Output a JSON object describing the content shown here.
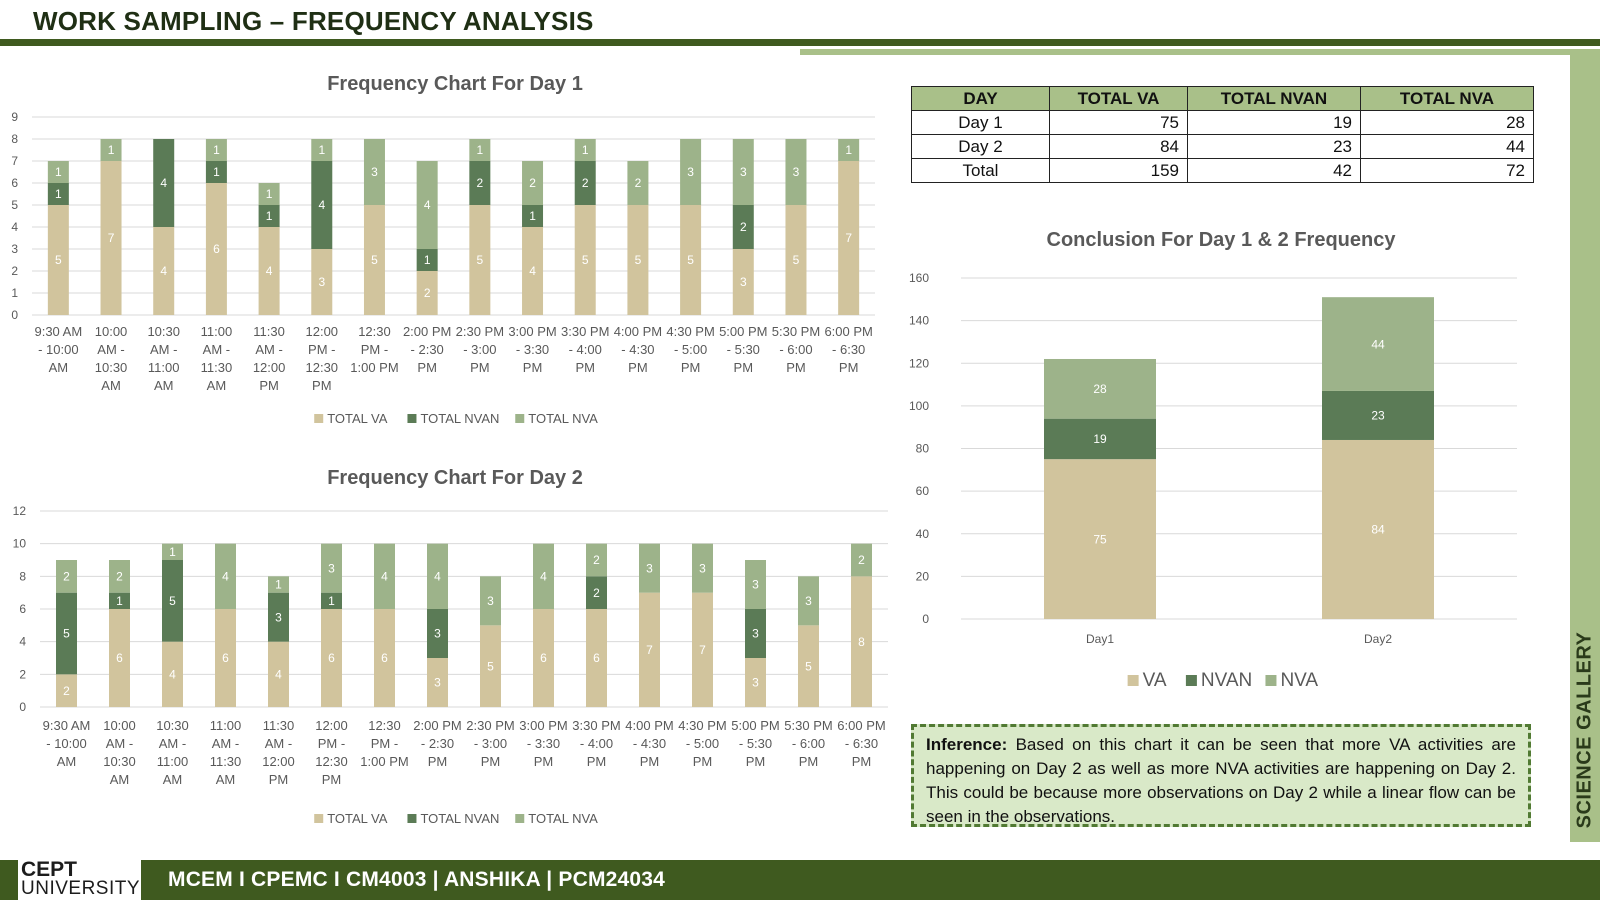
{
  "page": {
    "title": "WORK SAMPLING – FREQUENCY ANALYSIS",
    "side_label": "SCIENCE GALLERY",
    "logo_line1": "CEPT",
    "logo_line2": "UNIVERSITY",
    "footer": "MCEM I CPEMC I CM4003 | ANSHIKA | PCM24034"
  },
  "colors": {
    "va": "#d1c49d",
    "nvan": "#5b7b56",
    "nva": "#9db38a",
    "header_green": "#3f5a1f",
    "accent_light": "#a9c089"
  },
  "summary_table": {
    "headers": [
      "DAY",
      "TOTAL VA",
      "TOTAL NVAN",
      "TOTAL NVA"
    ],
    "rows": [
      [
        "Day 1",
        "75",
        "19",
        "28"
      ],
      [
        "Day 2",
        "84",
        "23",
        "44"
      ],
      [
        "Total",
        "159",
        "42",
        "72"
      ]
    ]
  },
  "inference": {
    "label": "Inference:",
    "text": " Based on this chart it can be seen that more VA activities are happening on Day 2 as well as more NVA activities are happening on Day 2. This could be because more observations on Day 2 while a linear flow can be seen in the observations."
  },
  "chart_data": [
    {
      "type": "bar",
      "stacked": true,
      "title": "Frequency Chart For Day 1",
      "categories": [
        [
          "9:30 AM",
          "- 10:00",
          "AM"
        ],
        [
          "10:00",
          "AM -",
          "10:30",
          "AM"
        ],
        [
          "10:30",
          "AM -",
          "11:00",
          "AM"
        ],
        [
          "11:00",
          "AM -",
          "11:30",
          "AM"
        ],
        [
          "11:30",
          "AM -",
          "12:00",
          "PM"
        ],
        [
          "12:00",
          "PM -",
          "12:30",
          "PM"
        ],
        [
          "12:30",
          "PM -",
          "1:00 PM"
        ],
        [
          "2:00 PM",
          "- 2:30",
          "PM"
        ],
        [
          "2:30 PM",
          "- 3:00",
          "PM"
        ],
        [
          "3:00 PM",
          "- 3:30",
          "PM"
        ],
        [
          "3:30 PM",
          "- 4:00",
          "PM"
        ],
        [
          "4:00 PM",
          "- 4:30",
          "PM"
        ],
        [
          "4:30 PM",
          "- 5:00",
          "PM"
        ],
        [
          "5:00 PM",
          "- 5:30",
          "PM"
        ],
        [
          "5:30 PM",
          "- 6:00",
          "PM"
        ],
        [
          "6:00 PM",
          "- 6:30",
          "PM"
        ]
      ],
      "series": [
        {
          "name": "TOTAL VA",
          "values": [
            5,
            7,
            4,
            6,
            4,
            3,
            5,
            2,
            5,
            4,
            5,
            5,
            5,
            3,
            5,
            7
          ]
        },
        {
          "name": "TOTAL NVAN",
          "values": [
            1,
            0,
            4,
            1,
            1,
            4,
            0,
            1,
            2,
            1,
            2,
            0,
            0,
            2,
            0,
            0
          ]
        },
        {
          "name": "TOTAL NVA",
          "values": [
            1,
            1,
            0,
            1,
            1,
            1,
            3,
            4,
            1,
            2,
            1,
            2,
            3,
            3,
            3,
            1
          ]
        }
      ],
      "ylim": [
        0,
        9
      ],
      "yticks": [
        0,
        1,
        2,
        3,
        4,
        5,
        6,
        7,
        8,
        9
      ],
      "data_labels": true,
      "grid": true,
      "legend": "bottom"
    },
    {
      "type": "bar",
      "stacked": true,
      "title": "Frequency Chart For Day 2",
      "categories": [
        [
          "9:30 AM",
          "- 10:00",
          "AM"
        ],
        [
          "10:00",
          "AM -",
          "10:30",
          "AM"
        ],
        [
          "10:30",
          "AM -",
          "11:00",
          "AM"
        ],
        [
          "11:00",
          "AM -",
          "11:30",
          "AM"
        ],
        [
          "11:30",
          "AM -",
          "12:00",
          "PM"
        ],
        [
          "12:00",
          "PM -",
          "12:30",
          "PM"
        ],
        [
          "12:30",
          "PM -",
          "1:00 PM"
        ],
        [
          "2:00 PM",
          "- 2:30",
          "PM"
        ],
        [
          "2:30 PM",
          "- 3:00",
          "PM"
        ],
        [
          "3:00 PM",
          "- 3:30",
          "PM"
        ],
        [
          "3:30 PM",
          "- 4:00",
          "PM"
        ],
        [
          "4:00 PM",
          "- 4:30",
          "PM"
        ],
        [
          "4:30 PM",
          "- 5:00",
          "PM"
        ],
        [
          "5:00 PM",
          "- 5:30",
          "PM"
        ],
        [
          "5:30 PM",
          "- 6:00",
          "PM"
        ],
        [
          "6:00 PM",
          "- 6:30",
          "PM"
        ]
      ],
      "series": [
        {
          "name": "TOTAL VA",
          "values": [
            2,
            6,
            4,
            6,
            4,
            6,
            6,
            3,
            5,
            6,
            6,
            7,
            7,
            3,
            5,
            8
          ]
        },
        {
          "name": "TOTAL NVAN",
          "values": [
            5,
            1,
            5,
            0,
            3,
            1,
            0,
            3,
            0,
            0,
            2,
            0,
            0,
            3,
            0,
            0
          ]
        },
        {
          "name": "TOTAL NVA",
          "values": [
            2,
            2,
            1,
            4,
            1,
            3,
            4,
            4,
            3,
            4,
            2,
            3,
            3,
            3,
            3,
            2
          ]
        }
      ],
      "ylim": [
        0,
        12
      ],
      "yticks": [
        0,
        2,
        4,
        6,
        8,
        10,
        12
      ],
      "data_labels": true,
      "grid": true,
      "legend": "bottom"
    },
    {
      "type": "bar",
      "stacked": true,
      "title": "Conclusion For Day 1 & 2 Frequency",
      "categories": [
        [
          "Day1"
        ],
        [
          "Day2"
        ]
      ],
      "series": [
        {
          "name": "VA",
          "values": [
            75,
            84
          ]
        },
        {
          "name": "NVAN",
          "values": [
            19,
            23
          ]
        },
        {
          "name": "NVA",
          "values": [
            28,
            44
          ]
        }
      ],
      "ylim": [
        0,
        160
      ],
      "yticks": [
        0,
        20,
        40,
        60,
        80,
        100,
        120,
        140,
        160
      ],
      "data_labels": true,
      "grid": true,
      "legend": "bottom"
    }
  ]
}
